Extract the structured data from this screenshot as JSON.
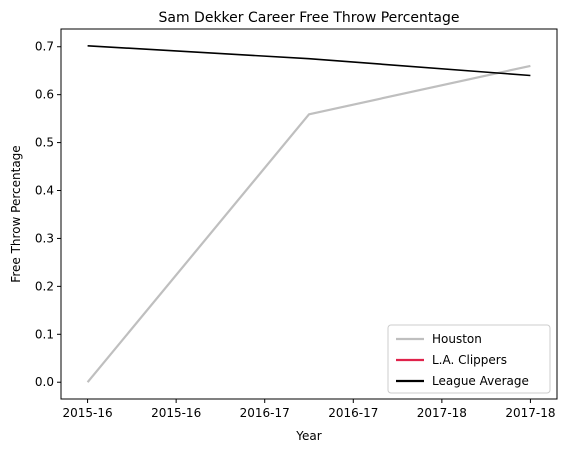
{
  "chart_data": {
    "type": "line",
    "title": "Sam Dekker Career Free Throw Percentage",
    "xlabel": "Year",
    "ylabel": "Free Throw Percentage",
    "x_tick_labels": [
      "2015-16",
      "2015-16",
      "2016-17",
      "2016-17",
      "2017-18",
      "2017-18"
    ],
    "x_tick_values": [
      0,
      0.5,
      1,
      1.5,
      2,
      2.5
    ],
    "xlim": [
      -0.15,
      2.65
    ],
    "ylim": [
      -0.035,
      0.737
    ],
    "y_ticks": [
      0.0,
      0.1,
      0.2,
      0.3,
      0.4,
      0.5,
      0.6,
      0.7
    ],
    "y_tick_labels": [
      "0.0",
      "0.1",
      "0.2",
      "0.3",
      "0.4",
      "0.5",
      "0.6",
      "0.7"
    ],
    "grid": false,
    "legend_position": "bottom-right",
    "series": [
      {
        "name": "Houston",
        "color": "#bfbfbf",
        "x": [
          0,
          1.25,
          2.5
        ],
        "y": [
          0.0,
          0.559,
          0.66
        ]
      },
      {
        "name": "L.A. Clippers",
        "color": "#e0224b",
        "x": [],
        "y": []
      },
      {
        "name": "League Average",
        "color": "#000000",
        "x": [
          0,
          1.25,
          2.5
        ],
        "y": [
          0.702,
          0.675,
          0.64
        ]
      }
    ]
  }
}
